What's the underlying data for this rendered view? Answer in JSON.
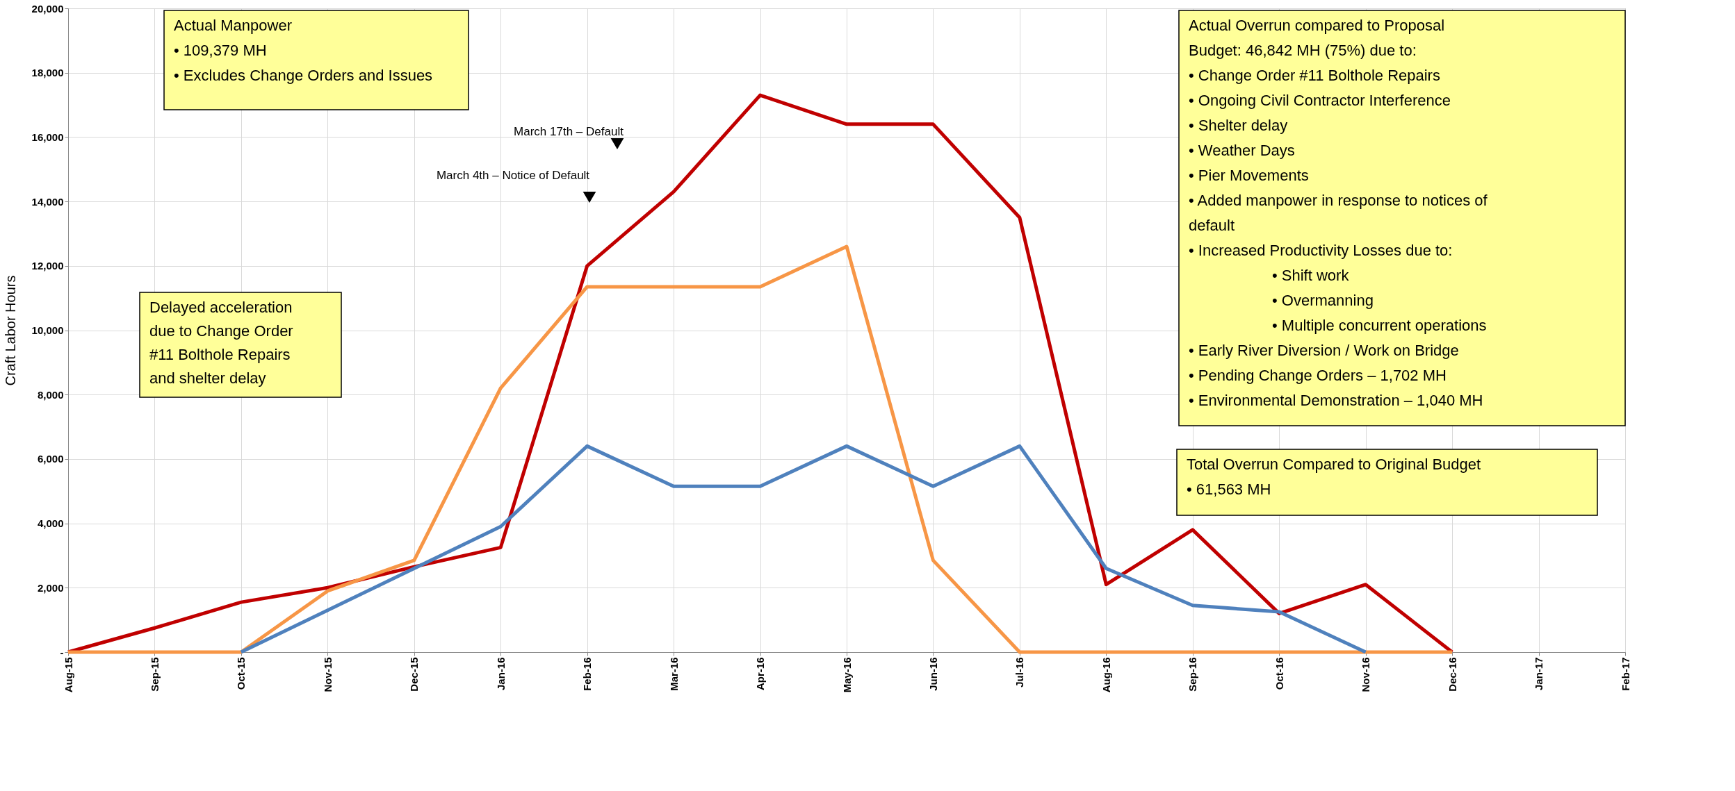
{
  "chart_data": {
    "type": "line",
    "ylabel": "Craft Labor Hours",
    "categories": [
      "Aug-15",
      "Sep-15",
      "Oct-15",
      "Nov-15",
      "Dec-15",
      "Jan-16",
      "Feb-16",
      "Mar-16",
      "Apr-16",
      "May-16",
      "Jun-16",
      "Jul-16",
      "Aug-16",
      "Sep-16",
      "Oct-16",
      "Nov-16",
      "Dec-16",
      "Jan-17",
      "Feb-17"
    ],
    "series": [
      {
        "color": "#c00000",
        "values": [
          0,
          750,
          1550,
          2000,
          2650,
          3250,
          12000,
          14300,
          17300,
          16400,
          16400,
          13500,
          2100,
          3800,
          1200,
          2100,
          0,
          null,
          null
        ]
      },
      {
        "color": "#f79646",
        "values": [
          0,
          0,
          0,
          1900,
          2850,
          8200,
          11350,
          11350,
          11350,
          12600,
          2850,
          0,
          0,
          0,
          0,
          0,
          0,
          null,
          null
        ]
      },
      {
        "color": "#4f81bd",
        "values": [
          null,
          null,
          0,
          1300,
          2600,
          3900,
          6400,
          5150,
          5150,
          6400,
          5150,
          6400,
          2600,
          1450,
          1250,
          0,
          null,
          null,
          null
        ]
      }
    ],
    "ylim": [
      0,
      20000
    ],
    "yticks": [
      {
        "value": 0,
        "label": "-"
      },
      {
        "value": 2000,
        "label": "2,000"
      },
      {
        "value": 4000,
        "label": "4,000"
      },
      {
        "value": 6000,
        "label": "6,000"
      },
      {
        "value": 8000,
        "label": "8,000"
      },
      {
        "value": 10000,
        "label": "10,000"
      },
      {
        "value": 12000,
        "label": "12,000"
      },
      {
        "value": 14000,
        "label": "14,000"
      },
      {
        "value": 16000,
        "label": "16,000"
      },
      {
        "value": 18000,
        "label": "18,000"
      },
      {
        "value": 20000,
        "label": "20,000"
      }
    ],
    "grid": true,
    "legend": false,
    "marker": "none",
    "line_style": "solid",
    "annotations": [
      "Actual Manpower\n• 109,379 MH\n• Excludes Change Orders and Issues",
      "Actual Overrun compared to Proposal\nBudget: 46,842 MH (75%) due to:\n• Change Order #11 Bolthole Repairs\n• Ongoing Civil Contractor Interference\n• Shelter delay\n• Weather Days\n• Pier Movements\n• Added manpower in response to notices of\ndefault\n• Increased Productivity Losses due to:\n• Shift work\n• Overmanning\n• Multiple concurrent operations\n• Early River Diversion / Work on Bridge\n• Pending Change Orders – 1,702 MH\n• Environmental Demonstration – 1,040 MH",
      "Delayed acceleration\ndue to Change Order\n#11 Bolthole Repairs\nand shelter delay",
      "Total Overrun Compared to Original Budget\n• 61,563 MH",
      "March 17th – Default",
      "March 4th – Notice of Default"
    ]
  }
}
